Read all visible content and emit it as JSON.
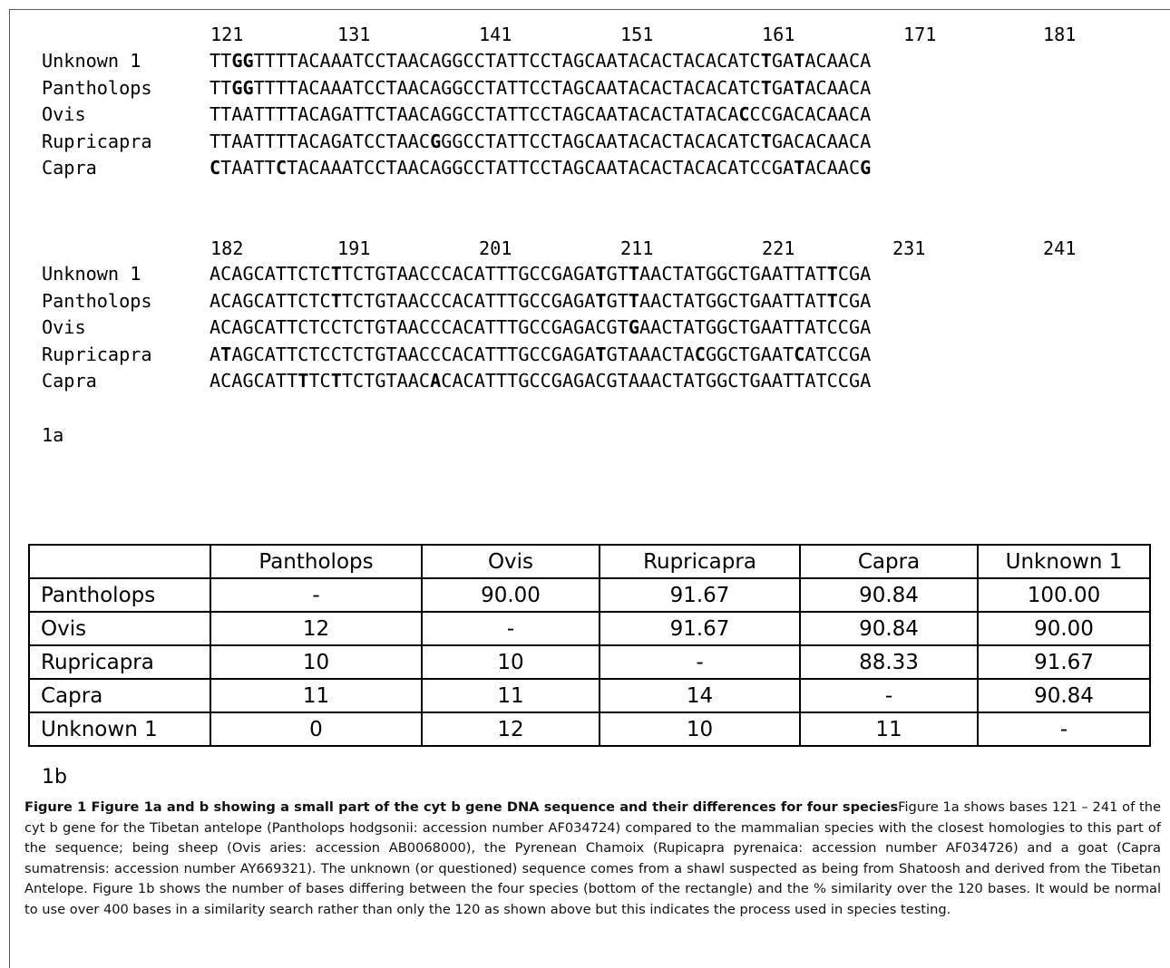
{
  "alignment_a": {
    "positions": [
      "121",
      "131",
      "141",
      "151",
      "161",
      "171",
      "181"
    ],
    "rows": [
      {
        "name": "Unknown 1",
        "seq": [
          [
            "TT",
            0
          ],
          [
            "GG",
            1
          ],
          [
            "TTTTACAAATCCTAACAGGCCTATTCCTAGCAATACACTACACATC",
            0
          ],
          [
            "T",
            1
          ],
          [
            "GA",
            0
          ],
          [
            "T",
            1
          ],
          [
            "ACAACA",
            0
          ]
        ]
      },
      {
        "name": "Pantholops",
        "seq": [
          [
            "TT",
            0
          ],
          [
            "GG",
            1
          ],
          [
            "TTTTACAAATCCTAACAGGCCTATTCCTAGCAATACACTACACATC",
            0
          ],
          [
            "T",
            1
          ],
          [
            "GA",
            0
          ],
          [
            "T",
            1
          ],
          [
            "ACAACA",
            0
          ]
        ]
      },
      {
        "name": "Ovis",
        "seq": [
          [
            "TTAATTTTACAGATTCTAACAGGCCTATTCCTAGCAATACACTATACA",
            0
          ],
          [
            "C",
            1
          ],
          [
            "CCGACACAACA",
            0
          ]
        ]
      },
      {
        "name": "Rupricapra",
        "seq": [
          [
            "TTAATTTTACAGATCCTAAC",
            0
          ],
          [
            "G",
            1
          ],
          [
            "GGCCTATTCCTAGCAATACACTACACATC",
            0
          ],
          [
            "T",
            1
          ],
          [
            "GACACAACA",
            0
          ]
        ]
      },
      {
        "name": "Capra",
        "seq": [
          [
            "C",
            1
          ],
          [
            "TAATT",
            0
          ],
          [
            "C",
            1
          ],
          [
            "TACAAATCCTAACAGGCCTATTCCTAGCAATACACTACACATCCGA",
            0
          ],
          [
            "T",
            1
          ],
          [
            "ACAAC",
            0
          ],
          [
            "G",
            1
          ]
        ]
      }
    ]
  },
  "alignment_b": {
    "positions": [
      "182",
      "191",
      "201",
      "211",
      "221",
      "231",
      "241"
    ],
    "rows": [
      {
        "name": "Unknown 1",
        "seq": [
          [
            "ACAGCATTCTC",
            0
          ],
          [
            "T",
            1
          ],
          [
            "TCTGTAACCCACATTTGCCGAGA",
            0
          ],
          [
            "T",
            1
          ],
          [
            "GT",
            0
          ],
          [
            "T",
            1
          ],
          [
            "AACTATGGCTGAATTAT",
            0
          ],
          [
            "T",
            1
          ],
          [
            "CGA",
            0
          ]
        ]
      },
      {
        "name": "Pantholops",
        "seq": [
          [
            "ACAGCATTCTC",
            0
          ],
          [
            "T",
            1
          ],
          [
            "TCTGTAACCCACATTTGCCGAGA",
            0
          ],
          [
            "T",
            1
          ],
          [
            "GT",
            0
          ],
          [
            "T",
            1
          ],
          [
            "AACTATGGCTGAATTAT",
            0
          ],
          [
            "T",
            1
          ],
          [
            "CGA",
            0
          ]
        ]
      },
      {
        "name": "Ovis",
        "seq": [
          [
            "ACAGCATTCTCCTCTGTAACCCACATTTGCCGAGACGT",
            0
          ],
          [
            "G",
            1
          ],
          [
            "AACTATGGCTGAATTATCCGA",
            0
          ]
        ]
      },
      {
        "name": "Rupricapra",
        "seq": [
          [
            "A",
            0
          ],
          [
            "T",
            1
          ],
          [
            "AGCATTCTCCTCTGTAACCCACATTTGCCGAGA",
            0
          ],
          [
            "T",
            1
          ],
          [
            "GTAAACTA",
            0
          ],
          [
            "C",
            1
          ],
          [
            "GGCTGAAT",
            0
          ],
          [
            "C",
            1
          ],
          [
            "ATCCGA",
            0
          ]
        ]
      },
      {
        "name": "Capra",
        "seq": [
          [
            "ACAGCATT",
            0
          ],
          [
            "T",
            1
          ],
          [
            "TC",
            0
          ],
          [
            "T",
            1
          ],
          [
            "TCTGTAAC",
            0
          ],
          [
            "A",
            1
          ],
          [
            "CACATTTGCCGAGACGTAAACTATGGCTGAATTATCCGA",
            0
          ]
        ]
      }
    ]
  },
  "label_1a": "1a",
  "table": {
    "header": [
      "",
      "Pantholops",
      "Ovis",
      "Rupricapra",
      "Capra",
      "Unknown 1"
    ],
    "rows": [
      [
        "Pantholops",
        "-",
        "90.00",
        "91.67",
        "90.84",
        "100.00"
      ],
      [
        "Ovis",
        "12",
        "-",
        "91.67",
        "90.84",
        "90.00"
      ],
      [
        "Rupricapra",
        "10",
        "10",
        "-",
        "88.33",
        "91.67"
      ],
      [
        "Capra",
        "11",
        "11",
        "14",
        "-",
        "90.84"
      ],
      [
        "Unknown 1",
        "0",
        "12",
        "10",
        "11",
        "-"
      ]
    ]
  },
  "label_1b": "1b",
  "caption": {
    "bold": "Figure 1 Figure 1a and b showing a small part of the cyt b gene DNA sequence and their differences for four species",
    "text": "Figure 1a shows bases 121 – 241 of the cyt b gene for the Tibetan antelope (Pantholops hodgsonii: accession number AF034724) compared to the mammalian species with the closest homologies to this part of the sequence; being sheep (Ovis aries: accession AB0068000), the Pyrenean Chamoix (Rupicapra pyrenaica: accession number AF034726) and a goat (Capra sumatrensis: accession number AY669321). The unknown (or questioned) sequence comes from a shawl suspected as being from Shatoosh and derived from the Tibetan Antelope. Figure 1b shows the number of bases differing between the four species (bottom of the rectangle) and the % similarity over the 120 bases. It would be normal to use over 400 bases in a similarity search rather than only the 120 as shown above but this indicates the process used in species testing."
  }
}
